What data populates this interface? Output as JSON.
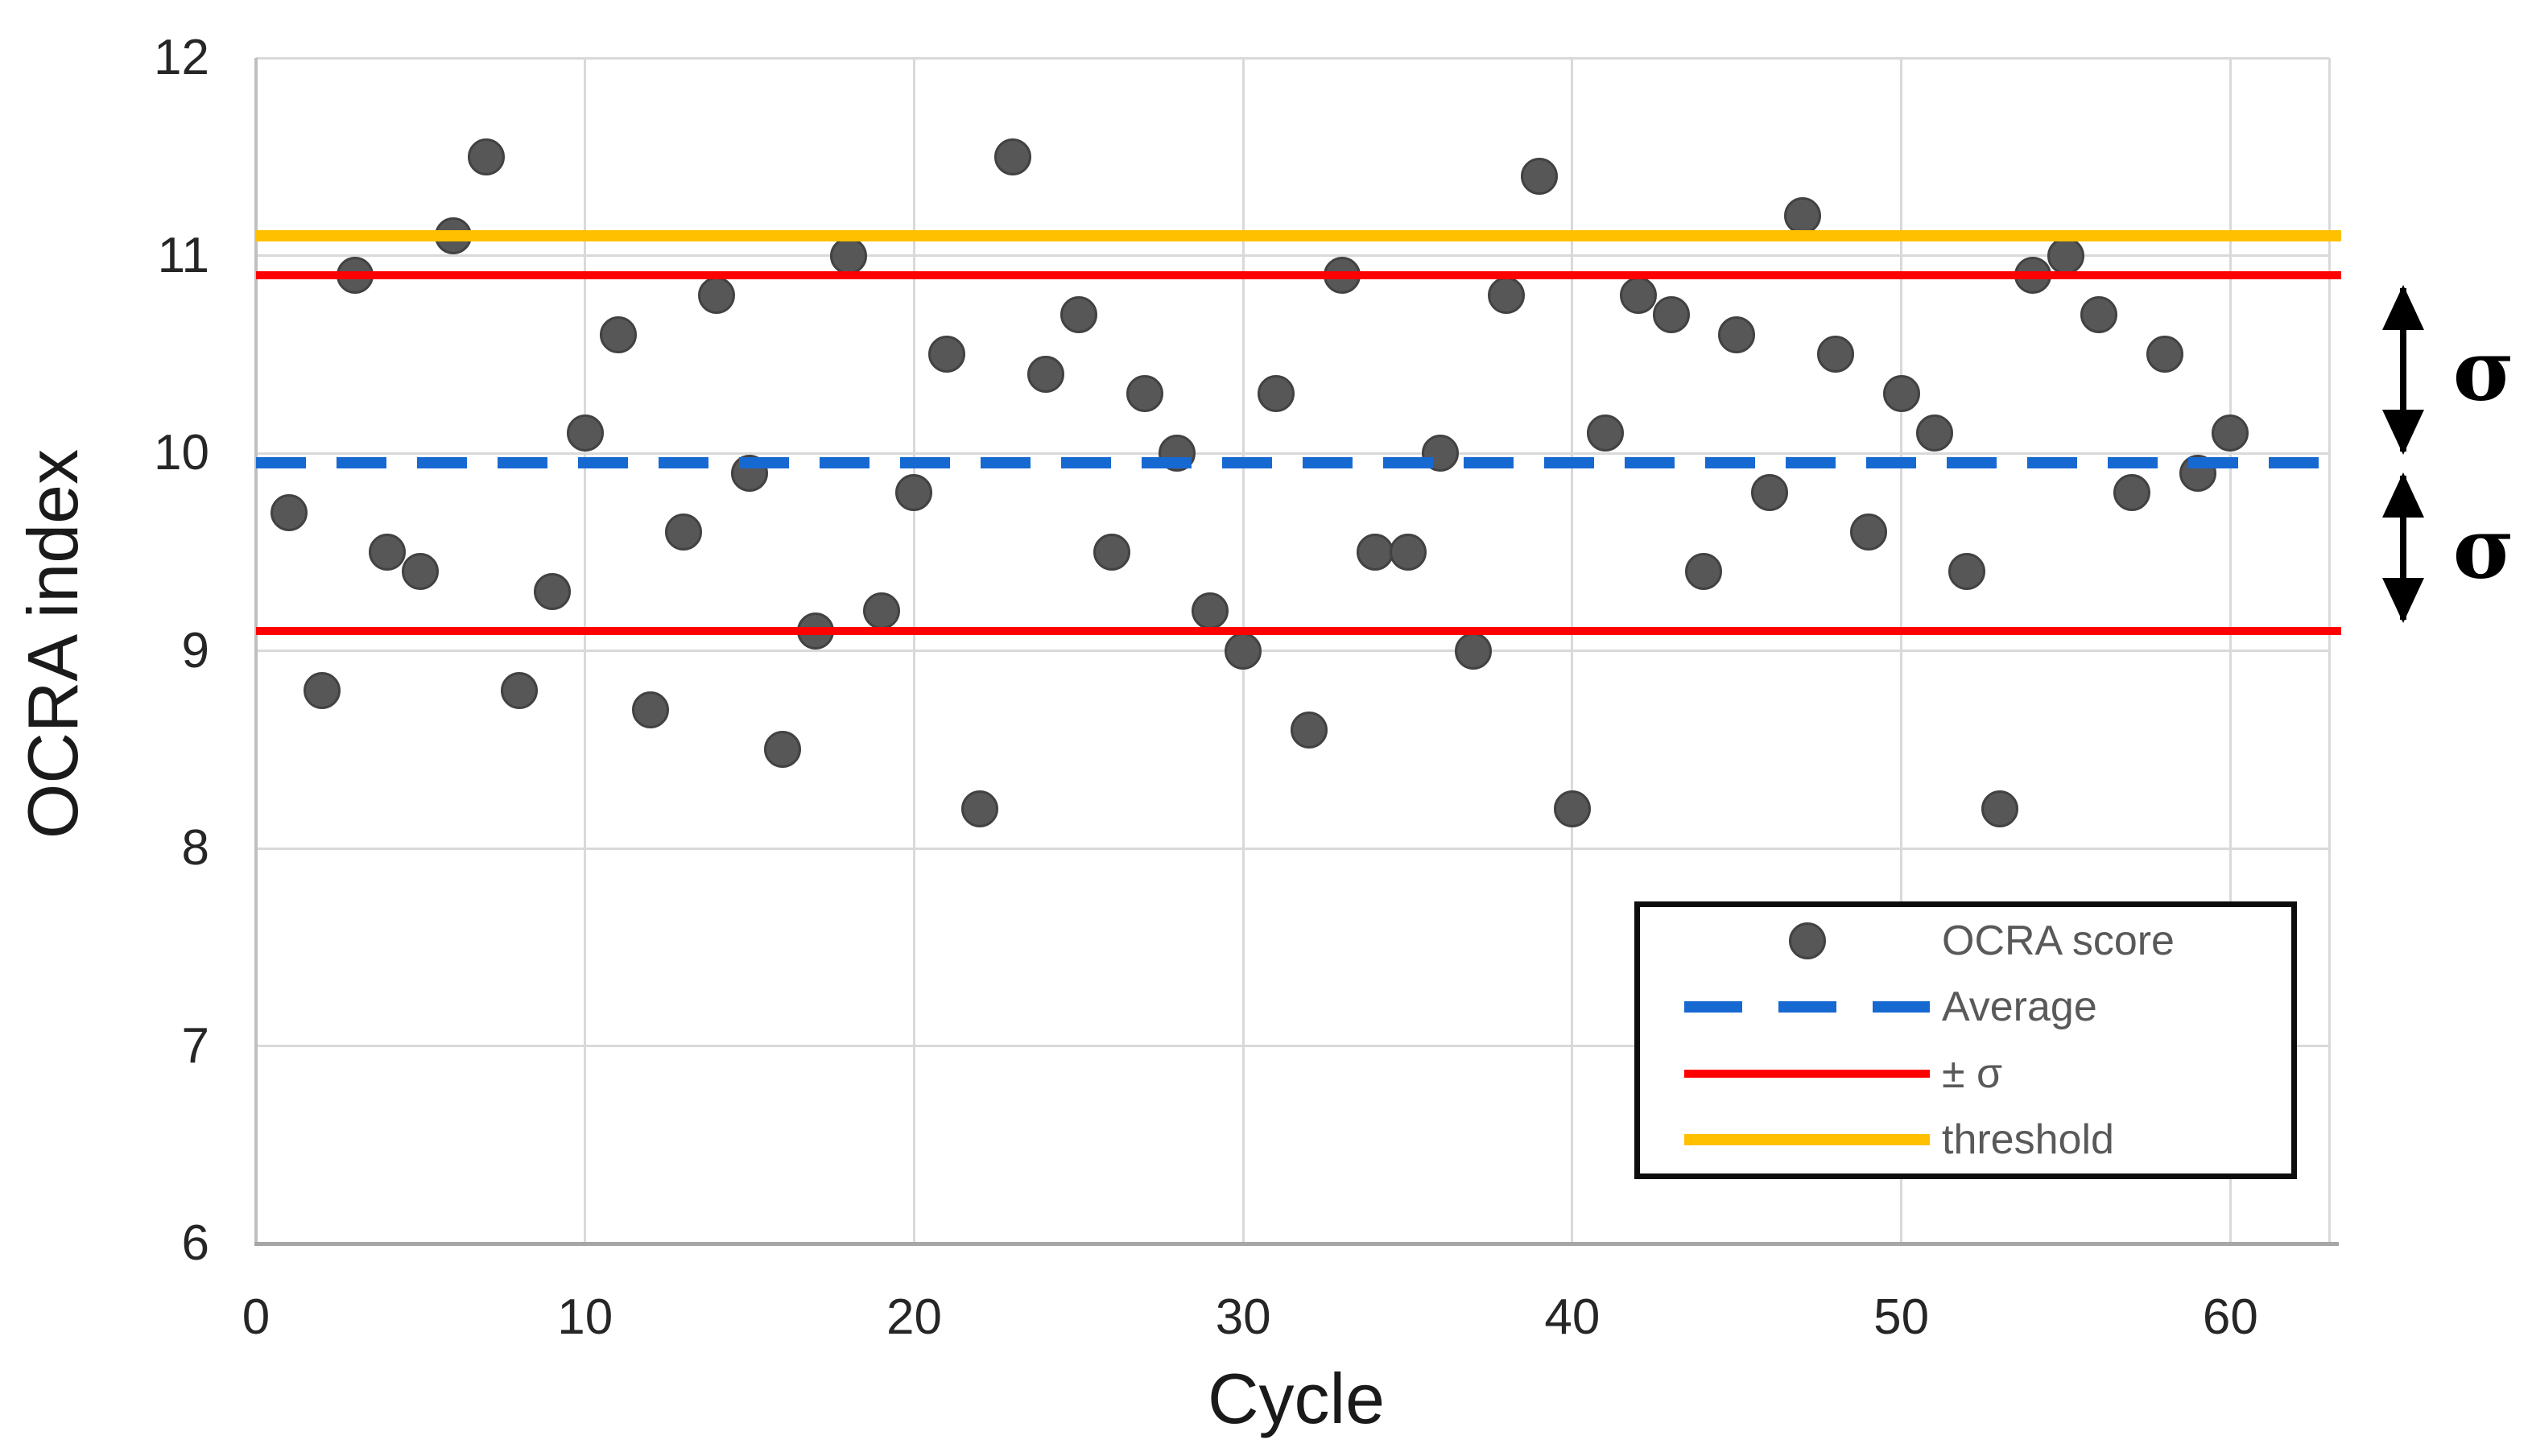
{
  "chart_data": {
    "type": "scatter",
    "title": "",
    "xlabel": "Cycle",
    "ylabel": "OCRA index",
    "xlim": [
      0,
      63
    ],
    "ylim": [
      6,
      12
    ],
    "x_ticks": [
      0,
      10,
      20,
      30,
      40,
      50,
      60
    ],
    "y_ticks": [
      12,
      11,
      10,
      9,
      8,
      7,
      6
    ],
    "grid": true,
    "series": [
      {
        "name": "OCRA score",
        "marker": "dot",
        "points": [
          [
            1,
            9.7
          ],
          [
            2,
            8.8
          ],
          [
            3,
            10.9
          ],
          [
            4,
            9.5
          ],
          [
            5,
            9.4
          ],
          [
            6,
            11.1
          ],
          [
            7,
            11.5
          ],
          [
            8,
            8.8
          ],
          [
            9,
            9.3
          ],
          [
            10,
            10.1
          ],
          [
            11,
            10.6
          ],
          [
            12,
            8.7
          ],
          [
            13,
            9.6
          ],
          [
            14,
            10.8
          ],
          [
            15,
            9.9
          ],
          [
            16,
            8.5
          ],
          [
            17,
            9.1
          ],
          [
            18,
            11.0
          ],
          [
            19,
            9.2
          ],
          [
            20,
            9.8
          ],
          [
            21,
            10.5
          ],
          [
            22,
            8.2
          ],
          [
            23,
            11.5
          ],
          [
            24,
            10.4
          ],
          [
            25,
            10.7
          ],
          [
            26,
            9.5
          ],
          [
            27,
            10.3
          ],
          [
            28,
            10.0
          ],
          [
            29,
            9.2
          ],
          [
            30,
            9.0
          ],
          [
            31,
            10.3
          ],
          [
            32,
            8.6
          ],
          [
            33,
            10.9
          ],
          [
            34,
            9.5
          ],
          [
            35,
            9.5
          ],
          [
            36,
            10.0
          ],
          [
            37,
            9.0
          ],
          [
            38,
            10.8
          ],
          [
            39,
            11.4
          ],
          [
            40,
            8.2
          ],
          [
            41,
            10.1
          ],
          [
            42,
            10.8
          ],
          [
            43,
            10.7
          ],
          [
            44,
            9.4
          ],
          [
            45,
            10.6
          ],
          [
            46,
            9.8
          ],
          [
            47,
            11.2
          ],
          [
            48,
            10.5
          ],
          [
            49,
            9.6
          ],
          [
            50,
            10.3
          ],
          [
            51,
            10.1
          ],
          [
            52,
            9.4
          ],
          [
            53,
            8.2
          ],
          [
            54,
            10.9
          ],
          [
            55,
            11.0
          ],
          [
            56,
            10.7
          ],
          [
            57,
            9.8
          ],
          [
            58,
            10.5
          ],
          [
            59,
            9.9
          ],
          [
            60,
            10.1
          ]
        ]
      }
    ],
    "reference_lines": [
      {
        "name": "threshold",
        "value": 11.1,
        "style": "solid",
        "color_key": "threshold_yellow",
        "thickness": 14
      },
      {
        "name": "plus_sigma",
        "value": 10.9,
        "style": "solid",
        "color_key": "sigma_red",
        "thickness": 10
      },
      {
        "name": "average",
        "value": 9.95,
        "style": "dashed",
        "color_key": "average_blue",
        "thickness": 14
      },
      {
        "name": "minus_sigma",
        "value": 9.1,
        "style": "solid",
        "color_key": "sigma_red",
        "thickness": 10
      }
    ],
    "legend": {
      "position": "bottom-right",
      "entries": [
        {
          "label": "OCRA score",
          "marker": "dot"
        },
        {
          "label": "Average",
          "marker": "dashed-blue"
        },
        {
          "label": "± σ",
          "marker": "solid-red"
        },
        {
          "label": "threshold",
          "marker": "solid-yellow"
        }
      ]
    },
    "annotations": [
      {
        "text": "σ",
        "arrow_from": 10.9,
        "arrow_to": 9.95
      },
      {
        "text": "σ",
        "arrow_from": 9.95,
        "arrow_to": 9.1
      }
    ]
  },
  "colors": {
    "dot": "#575757",
    "dot_edge": "#424242",
    "average_blue": "#1769D2",
    "sigma_red": "#FE0000",
    "threshold_yellow": "#FFC000",
    "gridline": "#D9D9D9",
    "axis_line": "#BFBFBF",
    "axis_bottom": "#A6A6A6",
    "tick_text": "#262626",
    "legend_text": "#595959",
    "legend_border": "#0D0D0D",
    "annotation": "#000000"
  }
}
